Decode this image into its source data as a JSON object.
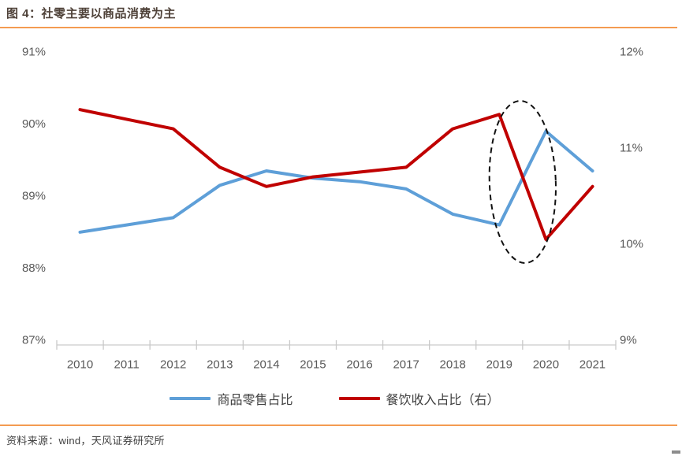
{
  "figure": {
    "title": "图 4：社零主要以商品消费为主",
    "source": "资料来源：wind，天风证券研究所"
  },
  "colors": {
    "accent_orange": "#F49B51",
    "blue_series": "#5E9FD8",
    "red_series": "#C00000",
    "axis_text": "#595959",
    "axis_line": "#C9C9C9",
    "legend_text": "#404040",
    "annotation_stroke": "#111111"
  },
  "legend": [
    {
      "label": "商品零售占比",
      "color": "#5E9FD8"
    },
    {
      "label": "餐饮收入占比（右）",
      "color": "#C00000"
    }
  ],
  "chart_data": {
    "type": "line",
    "title": "社零主要以商品消费为主",
    "categories": [
      "2010",
      "2011",
      "2012",
      "2013",
      "2014",
      "2015",
      "2016",
      "2017",
      "2018",
      "2019",
      "2020",
      "2021"
    ],
    "series": [
      {
        "name": "商品零售占比",
        "axis": "left",
        "color": "#5E9FD8",
        "values": [
          88.5,
          88.6,
          88.7,
          89.15,
          89.35,
          89.25,
          89.2,
          89.1,
          88.75,
          88.6,
          89.9,
          89.35
        ]
      },
      {
        "name": "餐饮收入占比（右）",
        "axis": "right",
        "color": "#C00000",
        "values": [
          11.4,
          11.3,
          11.2,
          10.8,
          10.6,
          10.7,
          10.75,
          10.8,
          11.2,
          11.35,
          10.05,
          10.6
        ]
      }
    ],
    "left_axis": {
      "min": 87,
      "max": 91,
      "tick_labels": [
        "91%",
        "90%",
        "89%",
        "88%",
        "87%"
      ]
    },
    "right_axis": {
      "min": 9,
      "max": 12,
      "tick_labels": [
        "12%",
        "11%",
        "10%",
        "9%"
      ]
    },
    "grid": false,
    "legend_position": "bottom",
    "annotation": {
      "type": "dashed-ellipse",
      "around_years": [
        "2019",
        "2020"
      ],
      "note": "highlights 2019-2020 crossover of the two series"
    }
  }
}
